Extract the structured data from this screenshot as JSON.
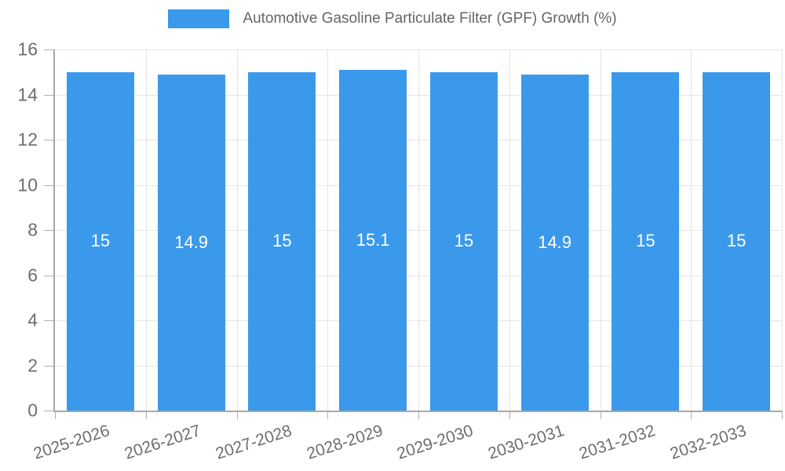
{
  "legend": {
    "label": "Automotive Gasoline Particulate Filter (GPF) Growth (%)"
  },
  "chart_data": {
    "type": "bar",
    "title": "Automotive Gasoline Particulate Filter (GPF) Growth (%)",
    "categories": [
      "2025-2026",
      "2026-2027",
      "2027-2028",
      "2028-2029",
      "2029-2030",
      "2030-2031",
      "2031-2032",
      "2032-2033"
    ],
    "values": [
      15,
      14.9,
      15,
      15.1,
      15,
      14.9,
      15,
      15
    ],
    "value_labels": [
      "15",
      "14.9",
      "15",
      "15.1",
      "15",
      "14.9",
      "15",
      "15"
    ],
    "xlabel": "",
    "ylabel": "",
    "ylim": [
      0,
      16
    ],
    "ytick_step": 2,
    "grid": true,
    "legend_position": "top",
    "bar_color": "#3b99ec",
    "bar_label_color": "#ffffff",
    "grid_color": "#e6e6e6",
    "axis_color": "#a8a8a8",
    "tick_label_color": "#6e6e6e",
    "legend_text_color": "#666666"
  }
}
